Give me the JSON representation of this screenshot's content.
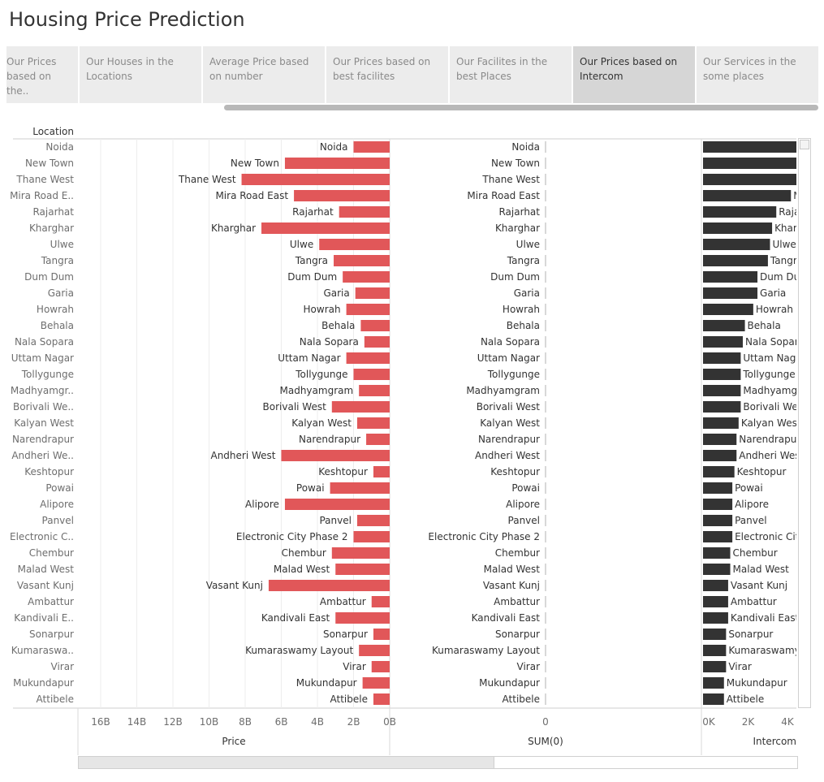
{
  "page": {
    "title": "Housing Price Prediction"
  },
  "tabs": [
    {
      "label": "Our Prices based on the..",
      "active": false
    },
    {
      "label": "Our Houses in the Locations",
      "active": false
    },
    {
      "label": "Average Price based on number",
      "active": false
    },
    {
      "label": "Our Prices based on best facilites",
      "active": false
    },
    {
      "label": "Our Facilites in the best Places",
      "active": false
    },
    {
      "label": "Our Prices based on Intercom",
      "active": true
    },
    {
      "label": "Our Services in the some places",
      "active": false
    }
  ],
  "chart_data": {
    "type": "bar",
    "row_header": "Location",
    "categories": [
      "Noida",
      "New Town",
      "Thane West",
      "Mira Road East",
      "Rajarhat",
      "Kharghar",
      "Ulwe",
      "Tangra",
      "Dum Dum",
      "Garia",
      "Howrah",
      "Behala",
      "Nala Sopara",
      "Uttam Nagar",
      "Tollygunge",
      "Madhyamgram",
      "Borivali West",
      "Kalyan West",
      "Narendrapur",
      "Andheri West",
      "Keshtopur",
      "Powai",
      "Alipore",
      "Panvel",
      "Electronic City Phase 2",
      "Chembur",
      "Malad West",
      "Vasant Kunj",
      "Ambattur",
      "Kandivali East",
      "Sonarpur",
      "Kumaraswamy Layout",
      "Virar",
      "Mukundapur",
      "Attibele"
    ],
    "row_labels": [
      "Noida",
      "New Town",
      "Thane West",
      "Mira Road E..",
      "Rajarhat",
      "Kharghar",
      "Ulwe",
      "Tangra",
      "Dum Dum",
      "Garia",
      "Howrah",
      "Behala",
      "Nala Sopara",
      "Uttam Nagar",
      "Tollygunge",
      "Madhyamgr..",
      "Borivali We..",
      "Kalyan West",
      "Narendrapur",
      "Andheri We..",
      "Keshtopur",
      "Powai",
      "Alipore",
      "Panvel",
      "Electronic C..",
      "Chembur",
      "Malad West",
      "Vasant Kunj",
      "Ambattur",
      "Kandivali E..",
      "Sonarpur",
      "Kumaraswa..",
      "Virar",
      "Mukundapur",
      "Attibele"
    ],
    "panels": [
      {
        "key": "price",
        "axis_label": "Price",
        "color": "#e15759",
        "reversed": true,
        "ticks": [
          "16B",
          "14B",
          "12B",
          "10B",
          "8B",
          "6B",
          "4B",
          "2B",
          "0B"
        ],
        "xlim": [
          0,
          17
        ],
        "values": [
          2.0,
          5.8,
          8.2,
          5.3,
          2.8,
          7.1,
          3.9,
          3.1,
          2.6,
          1.9,
          2.4,
          1.6,
          1.4,
          2.4,
          2.0,
          1.7,
          3.2,
          1.8,
          1.3,
          6.0,
          0.9,
          3.3,
          5.8,
          1.8,
          2.0,
          3.2,
          3.0,
          6.7,
          1.0,
          3.0,
          0.9,
          1.7,
          1.0,
          1.5,
          0.9
        ]
      },
      {
        "key": "sum0",
        "axis_label": "SUM(0)",
        "color": "#9a9a9a",
        "zero": true,
        "ticks": [
          "0"
        ],
        "values": [
          0,
          0,
          0,
          0,
          0,
          0,
          0,
          0,
          0,
          0,
          0,
          0,
          0,
          0,
          0,
          0,
          0,
          0,
          0,
          0,
          0,
          0,
          0,
          0,
          0,
          0,
          0,
          0,
          0,
          0,
          0,
          0,
          0,
          0,
          0
        ]
      },
      {
        "key": "intercom",
        "axis_label": "Intercom",
        "color": "#333333",
        "ticks": [
          "0K",
          "2K",
          "4K"
        ],
        "xlim": [
          0,
          5
        ],
        "values": [
          4.5,
          4.5,
          4.5,
          4.2,
          3.5,
          3.3,
          3.2,
          3.1,
          2.6,
          2.6,
          2.4,
          2.0,
          1.9,
          1.8,
          1.8,
          1.8,
          1.8,
          1.7,
          1.6,
          1.6,
          1.5,
          1.4,
          1.4,
          1.4,
          1.4,
          1.3,
          1.3,
          1.2,
          1.2,
          1.2,
          1.1,
          1.1,
          1.1,
          1.0,
          1.0
        ]
      }
    ]
  }
}
